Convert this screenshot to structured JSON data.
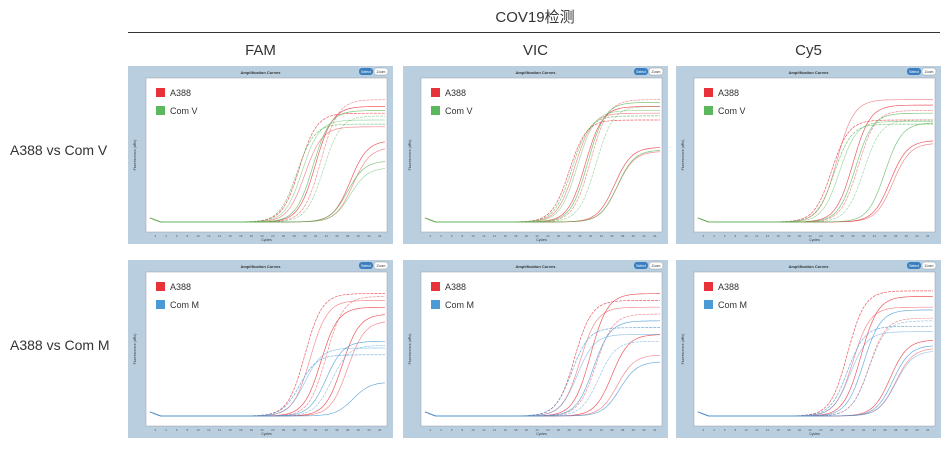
{
  "title": "COV19检测",
  "columns": [
    "FAM",
    "VIC",
    "Cy5"
  ],
  "rows": [
    "A388 vs Com V",
    "A388 vs Com M"
  ],
  "panel_common": {
    "panel_title": "Amplification Curves",
    "select_label": "Select",
    "zoom_label": "Zoom",
    "xlabel": "Cycles",
    "ylabel": "Fluorescence (dRn)",
    "xticks": [
      2,
      4,
      6,
      8,
      10,
      12,
      14,
      16,
      18,
      20,
      22,
      24,
      26,
      28,
      30,
      32,
      34,
      36,
      38,
      40,
      42,
      44
    ]
  },
  "colors": {
    "A388": "#e8323a",
    "Com V": "#5cb85c",
    "Com M": "#4a9ad6",
    "frame": "#b9cfe0",
    "select": "#3b7fc0"
  },
  "chart_data": [
    {
      "type": "line",
      "row": 0,
      "col": 0,
      "xlim": [
        1,
        45
      ],
      "legend": "top-left",
      "series": [
        {
          "name": "A388",
          "curves": [
            {
              "ct": 29,
              "plateau": 0.8
            },
            {
              "ct": 30,
              "plateau": 0.7
            },
            {
              "ct": 32,
              "plateau": 0.85
            },
            {
              "ct": 33,
              "plateau": 0.9
            },
            {
              "ct": 38.5,
              "plateau": 0.6
            },
            {
              "ct": 39,
              "plateau": 0.55
            }
          ]
        },
        {
          "name": "Com V",
          "curves": [
            {
              "ct": 28.5,
              "plateau": 0.72
            },
            {
              "ct": 29.5,
              "plateau": 0.75
            },
            {
              "ct": 31.5,
              "plateau": 0.82
            },
            {
              "ct": 33.5,
              "plateau": 0.78
            },
            {
              "ct": 38,
              "plateau": 0.45
            },
            {
              "ct": 38.5,
              "plateau": 0.4
            }
          ]
        }
      ]
    },
    {
      "type": "line",
      "row": 0,
      "col": 1,
      "xlim": [
        1,
        45
      ],
      "legend": "top-left",
      "series": [
        {
          "name": "A388",
          "curves": [
            {
              "ct": 28,
              "plateau": 0.75
            },
            {
              "ct": 29,
              "plateau": 0.8
            },
            {
              "ct": 31,
              "plateau": 0.85
            },
            {
              "ct": 32,
              "plateau": 0.9
            },
            {
              "ct": 36.5,
              "plateau": 0.55
            },
            {
              "ct": 37,
              "plateau": 0.52
            }
          ]
        },
        {
          "name": "Com V",
          "curves": [
            {
              "ct": 28.5,
              "plateau": 0.78
            },
            {
              "ct": 29.5,
              "plateau": 0.82
            },
            {
              "ct": 31.5,
              "plateau": 0.88
            },
            {
              "ct": 33,
              "plateau": 0.85
            },
            {
              "ct": 37,
              "plateau": 0.53
            }
          ]
        }
      ]
    },
    {
      "type": "line",
      "row": 0,
      "col": 2,
      "xlim": [
        1,
        45
      ],
      "legend": "top-left",
      "series": [
        {
          "name": "A388",
          "curves": [
            {
              "ct": 26,
              "plateau": 0.75
            },
            {
              "ct": 27,
              "plateau": 0.9
            },
            {
              "ct": 30,
              "plateau": 0.86
            },
            {
              "ct": 31,
              "plateau": 0.82
            },
            {
              "ct": 37,
              "plateau": 0.6
            },
            {
              "ct": 37.5,
              "plateau": 0.58
            }
          ]
        },
        {
          "name": "Com V",
          "curves": [
            {
              "ct": 26.5,
              "plateau": 0.72
            },
            {
              "ct": 27.5,
              "plateau": 0.74
            },
            {
              "ct": 30.5,
              "plateau": 0.8
            },
            {
              "ct": 32,
              "plateau": 0.75
            },
            {
              "ct": 36,
              "plateau": 0.73
            }
          ]
        }
      ]
    },
    {
      "type": "line",
      "row": 1,
      "col": 0,
      "xlim": [
        1,
        45
      ],
      "legend": "top-left",
      "series": [
        {
          "name": "A388",
          "curves": [
            {
              "ct": 30,
              "plateau": 0.9
            },
            {
              "ct": 31,
              "plateau": 0.85
            },
            {
              "ct": 33,
              "plateau": 0.8
            },
            {
              "ct": 34,
              "plateau": 0.88
            },
            {
              "ct": 37,
              "plateau": 0.75
            },
            {
              "ct": 38,
              "plateau": 0.7
            }
          ]
        },
        {
          "name": "Com M",
          "curves": [
            {
              "ct": 29,
              "plateau": 0.45
            },
            {
              "ct": 30,
              "plateau": 0.5
            },
            {
              "ct": 34,
              "plateau": 0.55
            },
            {
              "ct": 35,
              "plateau": 0.52
            },
            {
              "ct": 39,
              "plateau": 0.25
            }
          ]
        }
      ]
    },
    {
      "type": "line",
      "row": 1,
      "col": 1,
      "xlim": [
        1,
        45
      ],
      "legend": "top-left",
      "series": [
        {
          "name": "A388",
          "curves": [
            {
              "ct": 29,
              "plateau": 0.85
            },
            {
              "ct": 30,
              "plateau": 0.8
            },
            {
              "ct": 32,
              "plateau": 0.9
            },
            {
              "ct": 33,
              "plateau": 0.75
            },
            {
              "ct": 36,
              "plateau": 0.6
            },
            {
              "ct": 37,
              "plateau": 0.45
            }
          ]
        },
        {
          "name": "Com M",
          "curves": [
            {
              "ct": 28.5,
              "plateau": 0.65
            },
            {
              "ct": 29.5,
              "plateau": 0.6
            },
            {
              "ct": 32.5,
              "plateau": 0.7
            },
            {
              "ct": 33.5,
              "plateau": 0.55
            },
            {
              "ct": 37.5,
              "plateau": 0.4
            }
          ]
        }
      ]
    },
    {
      "type": "line",
      "row": 1,
      "col": 2,
      "xlim": [
        1,
        45
      ],
      "legend": "top-left",
      "series": [
        {
          "name": "A388",
          "curves": [
            {
              "ct": 29,
              "plateau": 0.92
            },
            {
              "ct": 30,
              "plateau": 0.8
            },
            {
              "ct": 31.5,
              "plateau": 0.88
            },
            {
              "ct": 33,
              "plateau": 0.72
            },
            {
              "ct": 37,
              "plateau": 0.56
            },
            {
              "ct": 38,
              "plateau": 0.5
            }
          ]
        },
        {
          "name": "Com M",
          "curves": [
            {
              "ct": 29,
              "plateau": 0.66
            },
            {
              "ct": 29.5,
              "plateau": 0.62
            },
            {
              "ct": 32,
              "plateau": 0.78
            },
            {
              "ct": 33,
              "plateau": 0.7
            },
            {
              "ct": 37.5,
              "plateau": 0.52
            },
            {
              "ct": 38,
              "plateau": 0.48
            }
          ]
        }
      ]
    }
  ]
}
